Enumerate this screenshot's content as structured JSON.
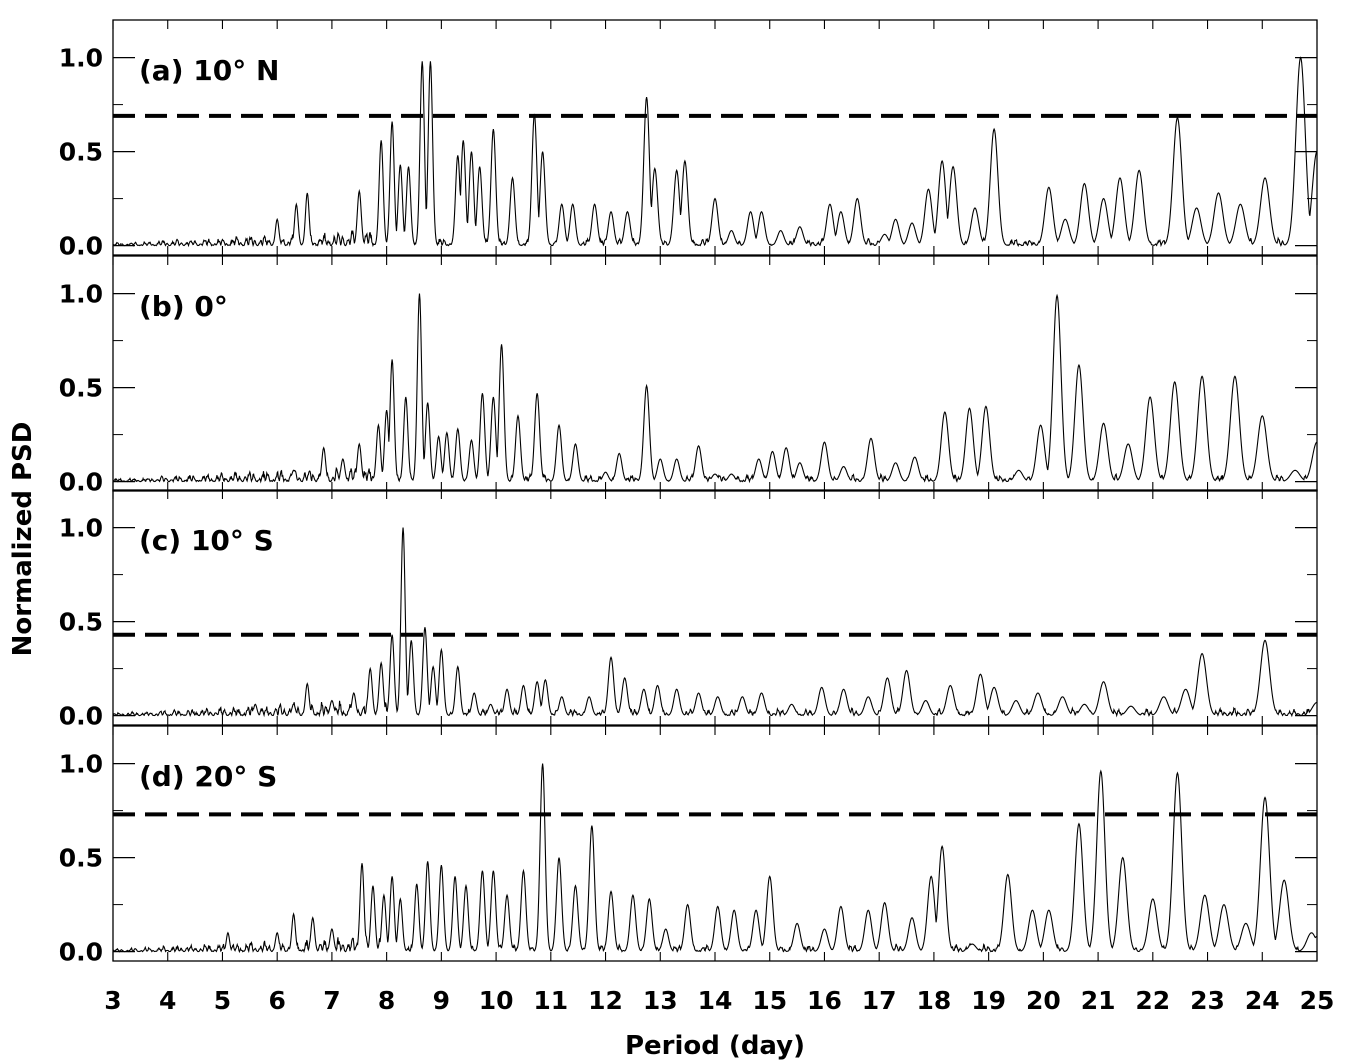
{
  "chart_data": {
    "type": "line",
    "xlabel": "Period (day)",
    "ylabel": "Normalized PSD",
    "xlim": [
      3,
      25
    ],
    "x_ticks": [
      "3",
      "4",
      "5",
      "6",
      "7",
      "8",
      "9",
      "10",
      "11",
      "12",
      "13",
      "14",
      "15",
      "16",
      "17",
      "18",
      "19",
      "20",
      "21",
      "22",
      "23",
      "24",
      "25"
    ],
    "grid": false,
    "panels": [
      {
        "label": "(a)  10° N",
        "ylim": [
          -0.05,
          1.2
        ],
        "y_ticks": [
          "0.0",
          "0.5",
          "1.0"
        ],
        "threshold": 0.69,
        "peaks": [
          [
            6.0,
            0.14
          ],
          [
            6.35,
            0.22
          ],
          [
            6.55,
            0.28
          ],
          [
            7.5,
            0.29
          ],
          [
            7.9,
            0.56
          ],
          [
            8.1,
            0.66
          ],
          [
            8.25,
            0.43
          ],
          [
            8.4,
            0.42
          ],
          [
            8.65,
            0.98
          ],
          [
            8.8,
            0.98
          ],
          [
            9.3,
            0.48
          ],
          [
            9.4,
            0.56
          ],
          [
            9.55,
            0.5
          ],
          [
            9.7,
            0.42
          ],
          [
            9.95,
            0.62
          ],
          [
            10.3,
            0.36
          ],
          [
            10.7,
            0.7
          ],
          [
            10.85,
            0.5
          ],
          [
            11.2,
            0.22
          ],
          [
            11.4,
            0.22
          ],
          [
            11.8,
            0.22
          ],
          [
            12.1,
            0.18
          ],
          [
            12.4,
            0.18
          ],
          [
            12.75,
            0.79
          ],
          [
            12.9,
            0.41
          ],
          [
            13.3,
            0.4
          ],
          [
            13.45,
            0.45
          ],
          [
            14.0,
            0.25
          ],
          [
            14.3,
            0.08
          ],
          [
            14.65,
            0.18
          ],
          [
            14.85,
            0.18
          ],
          [
            15.2,
            0.08
          ],
          [
            15.55,
            0.1
          ],
          [
            16.1,
            0.22
          ],
          [
            16.3,
            0.18
          ],
          [
            16.6,
            0.25
          ],
          [
            17.1,
            0.06
          ],
          [
            17.3,
            0.14
          ],
          [
            17.6,
            0.12
          ],
          [
            17.9,
            0.3
          ],
          [
            18.15,
            0.45
          ],
          [
            18.35,
            0.42
          ],
          [
            18.75,
            0.2
          ],
          [
            19.1,
            0.62
          ],
          [
            20.1,
            0.31
          ],
          [
            20.4,
            0.14
          ],
          [
            20.75,
            0.33
          ],
          [
            21.1,
            0.25
          ],
          [
            21.4,
            0.36
          ],
          [
            21.75,
            0.4
          ],
          [
            22.45,
            0.68
          ],
          [
            22.8,
            0.2
          ],
          [
            23.2,
            0.28
          ],
          [
            23.6,
            0.22
          ],
          [
            24.05,
            0.36
          ],
          [
            24.7,
            1.0
          ]
        ],
        "tail": [
          25.0,
          0.5
        ]
      },
      {
        "label": "(b)   0°",
        "ylim": [
          -0.05,
          1.2
        ],
        "y_ticks": [
          "0.0",
          "0.5",
          "1.0"
        ],
        "threshold": null,
        "peaks": [
          [
            6.3,
            0.06
          ],
          [
            6.85,
            0.18
          ],
          [
            7.2,
            0.12
          ],
          [
            7.5,
            0.2
          ],
          [
            7.85,
            0.3
          ],
          [
            8.0,
            0.38
          ],
          [
            8.1,
            0.65
          ],
          [
            8.35,
            0.45
          ],
          [
            8.6,
            1.0
          ],
          [
            8.75,
            0.42
          ],
          [
            8.95,
            0.24
          ],
          [
            9.1,
            0.26
          ],
          [
            9.3,
            0.28
          ],
          [
            9.55,
            0.22
          ],
          [
            9.75,
            0.47
          ],
          [
            9.95,
            0.45
          ],
          [
            10.1,
            0.73
          ],
          [
            10.4,
            0.35
          ],
          [
            10.75,
            0.47
          ],
          [
            11.15,
            0.3
          ],
          [
            11.45,
            0.2
          ],
          [
            12.0,
            0.05
          ],
          [
            12.25,
            0.15
          ],
          [
            12.75,
            0.51
          ],
          [
            13.0,
            0.12
          ],
          [
            13.3,
            0.12
          ],
          [
            13.7,
            0.19
          ],
          [
            14.0,
            0.04
          ],
          [
            14.3,
            0.04
          ],
          [
            14.8,
            0.12
          ],
          [
            15.05,
            0.16
          ],
          [
            15.3,
            0.18
          ],
          [
            15.55,
            0.1
          ],
          [
            16.0,
            0.21
          ],
          [
            16.35,
            0.08
          ],
          [
            16.85,
            0.23
          ],
          [
            17.3,
            0.1
          ],
          [
            17.65,
            0.13
          ],
          [
            18.2,
            0.37
          ],
          [
            18.65,
            0.39
          ],
          [
            18.95,
            0.4
          ],
          [
            19.55,
            0.06
          ],
          [
            19.95,
            0.3
          ],
          [
            20.25,
            0.99
          ],
          [
            20.65,
            0.62
          ],
          [
            21.1,
            0.31
          ],
          [
            21.55,
            0.2
          ],
          [
            21.95,
            0.45
          ],
          [
            22.4,
            0.53
          ],
          [
            22.9,
            0.56
          ],
          [
            23.5,
            0.56
          ],
          [
            24.0,
            0.35
          ],
          [
            24.6,
            0.06
          ],
          [
            25.0,
            0.21
          ]
        ],
        "tail": null
      },
      {
        "label": "(c)  10° S",
        "ylim": [
          -0.05,
          1.2
        ],
        "y_ticks": [
          "0.0",
          "0.5",
          "1.0"
        ],
        "threshold": 0.43,
        "peaks": [
          [
            5.6,
            0.06
          ],
          [
            6.3,
            0.06
          ],
          [
            6.55,
            0.17
          ],
          [
            7.0,
            0.08
          ],
          [
            7.4,
            0.12
          ],
          [
            7.7,
            0.25
          ],
          [
            7.9,
            0.28
          ],
          [
            8.1,
            0.43
          ],
          [
            8.3,
            1.0
          ],
          [
            8.45,
            0.4
          ],
          [
            8.7,
            0.47
          ],
          [
            8.85,
            0.26
          ],
          [
            9.0,
            0.35
          ],
          [
            9.3,
            0.26
          ],
          [
            9.6,
            0.12
          ],
          [
            9.9,
            0.06
          ],
          [
            10.2,
            0.14
          ],
          [
            10.5,
            0.16
          ],
          [
            10.75,
            0.18
          ],
          [
            10.9,
            0.19
          ],
          [
            11.2,
            0.1
          ],
          [
            11.7,
            0.1
          ],
          [
            12.1,
            0.31
          ],
          [
            12.35,
            0.2
          ],
          [
            12.7,
            0.14
          ],
          [
            12.95,
            0.16
          ],
          [
            13.3,
            0.14
          ],
          [
            13.7,
            0.12
          ],
          [
            14.05,
            0.1
          ],
          [
            14.5,
            0.1
          ],
          [
            14.85,
            0.12
          ],
          [
            15.4,
            0.06
          ],
          [
            15.95,
            0.15
          ],
          [
            16.35,
            0.14
          ],
          [
            16.8,
            0.1
          ],
          [
            17.15,
            0.2
          ],
          [
            17.5,
            0.24
          ],
          [
            17.85,
            0.08
          ],
          [
            18.3,
            0.16
          ],
          [
            18.85,
            0.22
          ],
          [
            19.1,
            0.15
          ],
          [
            19.5,
            0.08
          ],
          [
            19.9,
            0.12
          ],
          [
            20.35,
            0.1
          ],
          [
            20.75,
            0.06
          ],
          [
            21.1,
            0.18
          ],
          [
            21.6,
            0.05
          ],
          [
            22.2,
            0.1
          ],
          [
            22.6,
            0.14
          ],
          [
            22.9,
            0.33
          ],
          [
            24.05,
            0.4
          ],
          [
            25.0,
            0.07
          ]
        ],
        "tail": null
      },
      {
        "label": "(d)  20° S",
        "ylim": [
          -0.05,
          1.2
        ],
        "y_ticks": [
          "0.0",
          "0.5",
          "1.0"
        ],
        "threshold": 0.73,
        "peaks": [
          [
            5.1,
            0.1
          ],
          [
            6.0,
            0.1
          ],
          [
            6.3,
            0.2
          ],
          [
            6.65,
            0.18
          ],
          [
            7.0,
            0.12
          ],
          [
            7.55,
            0.47
          ],
          [
            7.75,
            0.35
          ],
          [
            7.95,
            0.3
          ],
          [
            8.1,
            0.4
          ],
          [
            8.25,
            0.28
          ],
          [
            8.55,
            0.36
          ],
          [
            8.75,
            0.48
          ],
          [
            9.0,
            0.46
          ],
          [
            9.25,
            0.4
          ],
          [
            9.45,
            0.35
          ],
          [
            9.75,
            0.43
          ],
          [
            9.95,
            0.43
          ],
          [
            10.2,
            0.3
          ],
          [
            10.5,
            0.43
          ],
          [
            10.85,
            1.0
          ],
          [
            11.15,
            0.5
          ],
          [
            11.45,
            0.35
          ],
          [
            11.75,
            0.67
          ],
          [
            12.1,
            0.32
          ],
          [
            12.5,
            0.3
          ],
          [
            12.8,
            0.28
          ],
          [
            13.1,
            0.12
          ],
          [
            13.5,
            0.25
          ],
          [
            14.05,
            0.24
          ],
          [
            14.35,
            0.22
          ],
          [
            14.75,
            0.22
          ],
          [
            15.0,
            0.4
          ],
          [
            15.5,
            0.15
          ],
          [
            16.0,
            0.12
          ],
          [
            16.3,
            0.24
          ],
          [
            16.8,
            0.22
          ],
          [
            17.1,
            0.26
          ],
          [
            17.6,
            0.18
          ],
          [
            17.95,
            0.4
          ],
          [
            18.15,
            0.56
          ],
          [
            18.7,
            0.04
          ],
          [
            19.35,
            0.41
          ],
          [
            19.8,
            0.22
          ],
          [
            20.1,
            0.22
          ],
          [
            20.65,
            0.68
          ],
          [
            21.05,
            0.96
          ],
          [
            21.45,
            0.5
          ],
          [
            22.0,
            0.28
          ],
          [
            22.45,
            0.95
          ],
          [
            22.95,
            0.3
          ],
          [
            23.3,
            0.25
          ],
          [
            23.7,
            0.15
          ],
          [
            24.05,
            0.82
          ],
          [
            24.4,
            0.38
          ],
          [
            24.9,
            0.1
          ]
        ],
        "tail": [
          25.0,
          0.08
        ]
      }
    ]
  }
}
